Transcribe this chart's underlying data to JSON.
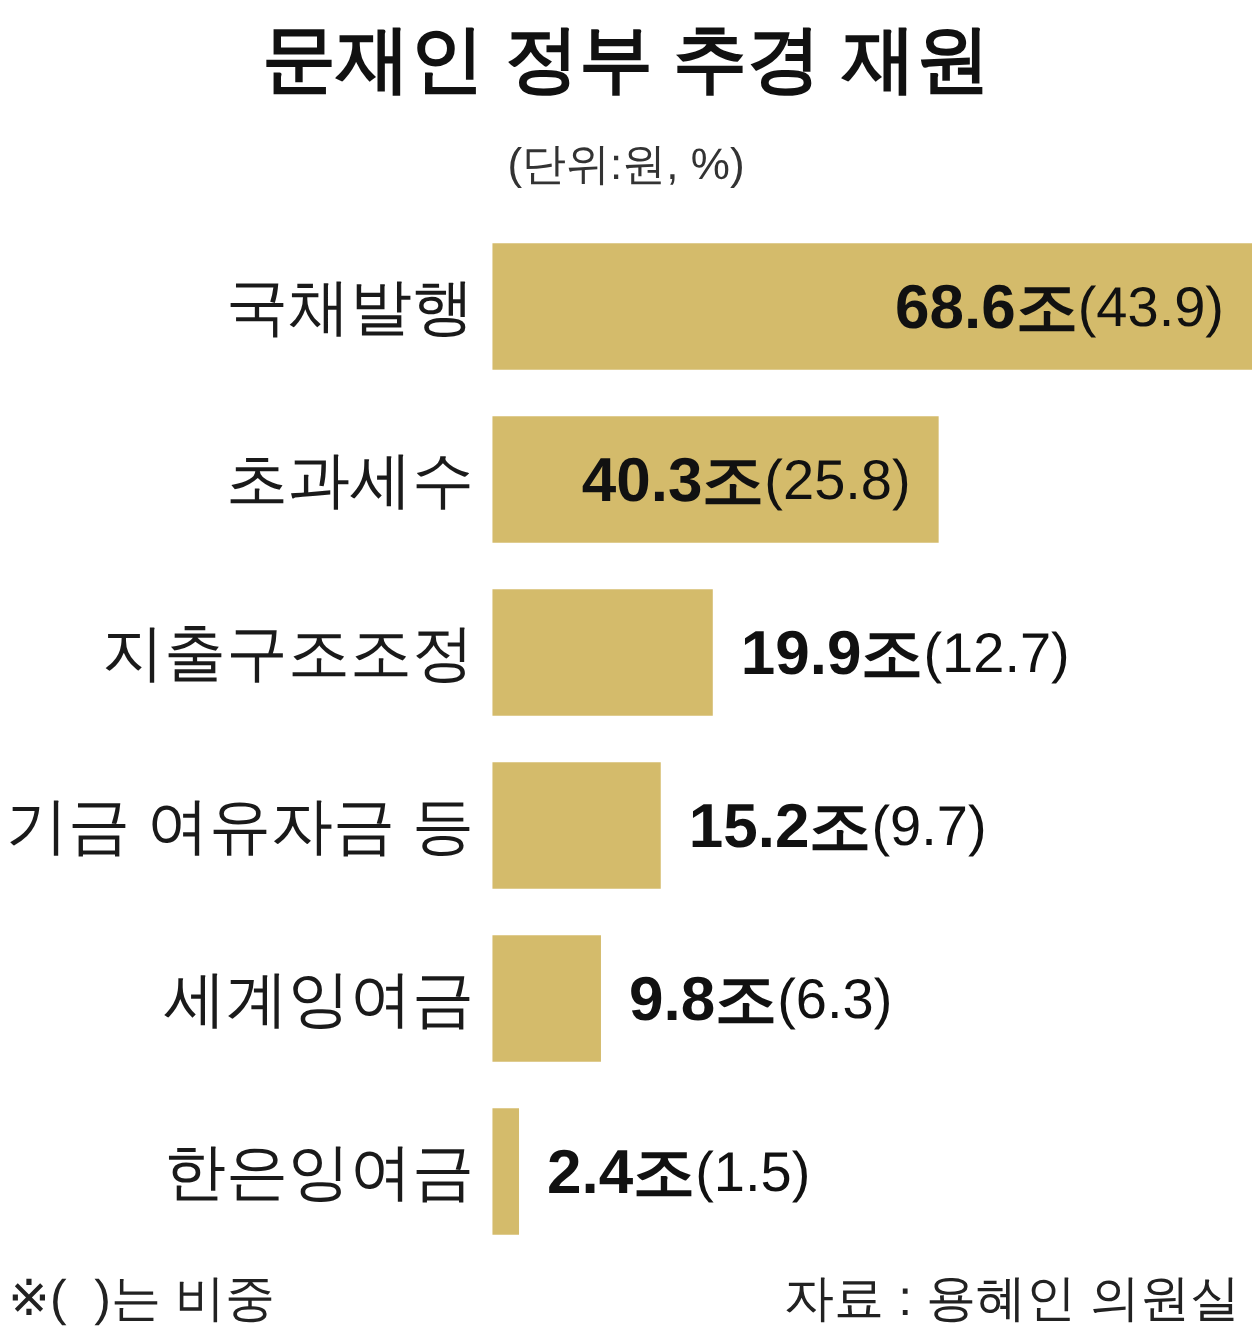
{
  "chart_data": {
    "type": "bar",
    "orientation": "horizontal",
    "title": "문재인 정부 추경 재원",
    "subtitle": "(단위:원, %)",
    "categories": [
      "국채발행",
      "초과세수",
      "지출구조조정",
      "기금 여유자금 등",
      "세계잉여금",
      "한은잉여금"
    ],
    "values": [
      68.6,
      40.3,
      19.9,
      15.2,
      9.8,
      2.4
    ],
    "color": "#d4bb6b",
    "value_labels": [
      "68.6조(43.9)",
      "40.3조(25.8)",
      "19.9조(12.7)",
      "15.2조(9.7)",
      "9.8조(6.3)",
      "2.4조(1.5)"
    ],
    "tick_labels": "y",
    "annotations": [
      "※(  )는 비중",
      "자료 : 용혜인 의원실"
    ]
  }
}
